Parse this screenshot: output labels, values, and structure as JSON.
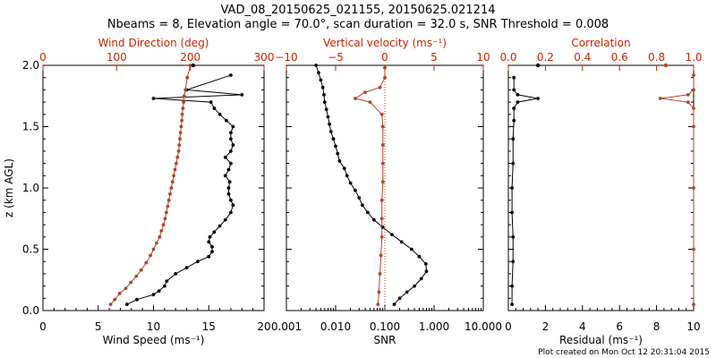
{
  "header": {
    "title": "VAD_08_20150625_021155, 20150625.021214",
    "subtitle": "Nbeams = 8, Elevation angle = 70.0°, scan duration = 32.0 s, SNR Threshold = 0.008"
  },
  "footer": {
    "created": "Plot created on Mon Oct 12 20:31:04 2015"
  },
  "colors": {
    "black": "#000000",
    "red": "#b2442a",
    "redText": "#cc2200"
  },
  "chart_data": [
    {
      "type": "line",
      "title": "",
      "ylabel": "z (km AGL)",
      "ylim": [
        0,
        2.0
      ],
      "yticks": [
        "0.0",
        "0.5",
        "1.0",
        "1.5",
        "2.0"
      ],
      "bottom_axis": {
        "label": "Wind Speed (ms⁻¹)",
        "lim": [
          0,
          20
        ],
        "ticks": [
          "0",
          "5",
          "10",
          "15",
          "20"
        ]
      },
      "top_axis": {
        "label": "Wind Direction (deg)",
        "lim": [
          0,
          360
        ],
        "ticks": [
          "0",
          "100",
          "200",
          "300"
        ]
      },
      "series": [
        {
          "axis": "bottom",
          "color": "black",
          "points": [
            [
              7.6,
              0.05
            ],
            [
              8.5,
              0.09
            ],
            [
              10.0,
              0.13
            ],
            [
              10.5,
              0.16
            ],
            [
              11.0,
              0.2
            ],
            [
              11.2,
              0.24
            ],
            [
              12.0,
              0.3
            ],
            [
              13.0,
              0.35
            ],
            [
              14.0,
              0.4
            ],
            [
              15.0,
              0.44
            ],
            [
              15.3,
              0.48
            ],
            [
              15.3,
              0.52
            ],
            [
              15.0,
              0.56
            ],
            [
              15.1,
              0.6
            ],
            [
              15.5,
              0.64
            ],
            [
              16.0,
              0.69
            ],
            [
              16.5,
              0.74
            ],
            [
              17.0,
              0.8
            ],
            [
              17.2,
              0.86
            ],
            [
              17.0,
              0.9
            ],
            [
              16.8,
              0.95
            ],
            [
              16.8,
              1.0
            ],
            [
              16.9,
              1.05
            ],
            [
              16.5,
              1.1
            ],
            [
              16.8,
              1.15
            ],
            [
              17.0,
              1.2
            ],
            [
              16.5,
              1.25
            ],
            [
              17.0,
              1.3
            ],
            [
              17.2,
              1.35
            ],
            [
              17.0,
              1.4
            ],
            [
              17.0,
              1.45
            ],
            [
              17.2,
              1.5
            ],
            [
              16.6,
              1.55
            ],
            [
              16.0,
              1.6
            ],
            [
              15.5,
              1.65
            ],
            [
              15.2,
              1.7
            ],
            [
              10.0,
              1.73
            ],
            [
              18.0,
              1.76
            ],
            [
              13.0,
              1.8
            ],
            [
              17.0,
              1.92
            ]
          ]
        },
        {
          "axis": "top",
          "color": "red",
          "points": [
            [
              110,
              0.05
            ],
            [
              117,
              0.09
            ],
            [
              125,
              0.14
            ],
            [
              135,
              0.18
            ],
            [
              143,
              0.23
            ],
            [
              152,
              0.28
            ],
            [
              160,
              0.33
            ],
            [
              168,
              0.39
            ],
            [
              175,
              0.45
            ],
            [
              180,
              0.5
            ],
            [
              185,
              0.55
            ],
            [
              190,
              0.6
            ],
            [
              193,
              0.65
            ],
            [
              196,
              0.7
            ],
            [
              199,
              0.75
            ],
            [
              201,
              0.8
            ],
            [
              203,
              0.85
            ],
            [
              205,
              0.9
            ],
            [
              207,
              0.95
            ],
            [
              209,
              1.0
            ],
            [
              211,
              1.05
            ],
            [
              213,
              1.1
            ],
            [
              215,
              1.15
            ],
            [
              217,
              1.2
            ],
            [
              219,
              1.25
            ],
            [
              221,
              1.3
            ],
            [
              222,
              1.35
            ],
            [
              223,
              1.4
            ],
            [
              224,
              1.45
            ],
            [
              225,
              1.5
            ],
            [
              226,
              1.55
            ],
            [
              227,
              1.6
            ],
            [
              228,
              1.65
            ],
            [
              229,
              1.7
            ],
            [
              230,
              1.75
            ],
            [
              232,
              1.8
            ],
            [
              235,
              1.9
            ],
            [
              240,
              2.0
            ]
          ]
        }
      ],
      "extra_markers": [
        {
          "axis": "bottom",
          "color": "black",
          "x": 13.6,
          "y": 2.0
        }
      ]
    },
    {
      "type": "line",
      "title": "",
      "ylim": [
        0,
        2.0
      ],
      "xscale": "log",
      "bottom_axis": {
        "label": "SNR",
        "lim": [
          0.001,
          10
        ],
        "ticks": [
          "0.001",
          "0.010",
          "0.100",
          "1.000",
          "10.000"
        ]
      },
      "top_axis": {
        "label": "Vertical velocity (ms⁻¹)",
        "lim": [
          -10,
          10
        ],
        "ticks": [
          "−10",
          "−5",
          "0",
          "5",
          "10"
        ]
      },
      "reference_line": {
        "axis": "top",
        "x": 0,
        "style": "dotted",
        "color": "red"
      },
      "series": [
        {
          "axis": "bottom",
          "color": "black",
          "points": [
            [
              0.155,
              0.05
            ],
            [
              0.2,
              0.1
            ],
            [
              0.28,
              0.15
            ],
            [
              0.4,
              0.2
            ],
            [
              0.55,
              0.26
            ],
            [
              0.7,
              0.32
            ],
            [
              0.68,
              0.38
            ],
            [
              0.5,
              0.44
            ],
            [
              0.35,
              0.5
            ],
            [
              0.22,
              0.56
            ],
            [
              0.14,
              0.62
            ],
            [
              0.09,
              0.68
            ],
            [
              0.06,
              0.74
            ],
            [
              0.045,
              0.8
            ],
            [
              0.035,
              0.86
            ],
            [
              0.03,
              0.92
            ],
            [
              0.025,
              0.98
            ],
            [
              0.02,
              1.04
            ],
            [
              0.017,
              1.1
            ],
            [
              0.015,
              1.16
            ],
            [
              0.012,
              1.22
            ],
            [
              0.011,
              1.28
            ],
            [
              0.01,
              1.34
            ],
            [
              0.009,
              1.4
            ],
            [
              0.008,
              1.46
            ],
            [
              0.0075,
              1.52
            ],
            [
              0.007,
              1.58
            ],
            [
              0.0065,
              1.64
            ],
            [
              0.006,
              1.7
            ],
            [
              0.0058,
              1.76
            ],
            [
              0.0055,
              1.82
            ],
            [
              0.005,
              1.88
            ],
            [
              0.0045,
              1.94
            ],
            [
              0.004,
              2.0
            ]
          ]
        },
        {
          "axis": "top",
          "color": "red",
          "points": [
            [
              -0.7,
              0.05
            ],
            [
              -0.6,
              0.15
            ],
            [
              -0.5,
              0.3
            ],
            [
              -0.4,
              0.45
            ],
            [
              -0.3,
              0.6
            ],
            [
              -0.3,
              0.75
            ],
            [
              -0.3,
              0.9
            ],
            [
              -0.2,
              1.05
            ],
            [
              -0.2,
              1.2
            ],
            [
              -0.2,
              1.35
            ],
            [
              -0.2,
              1.5
            ],
            [
              -0.3,
              1.6
            ],
            [
              -1.5,
              1.7
            ],
            [
              -3.0,
              1.73
            ],
            [
              -2.0,
              1.78
            ],
            [
              -0.5,
              1.82
            ],
            [
              0,
              1.9
            ],
            [
              0,
              1.98
            ]
          ]
        }
      ]
    },
    {
      "type": "line",
      "title": "",
      "ylim": [
        0,
        2.0
      ],
      "bottom_axis": {
        "label": "Residual (ms⁻¹)",
        "lim": [
          0,
          10
        ],
        "ticks": [
          "0",
          "2",
          "4",
          "6",
          "8",
          "10"
        ]
      },
      "top_axis": {
        "label": "Correlation",
        "lim": [
          0,
          1
        ],
        "ticks": [
          "0.0",
          "0.2",
          "0.4",
          "0.6",
          "0.8",
          "1.0"
        ]
      },
      "series": [
        {
          "axis": "bottom",
          "color": "black",
          "points": [
            [
              0.2,
              0.05
            ],
            [
              0.2,
              0.2
            ],
            [
              0.25,
              0.4
            ],
            [
              0.25,
              0.6
            ],
            [
              0.2,
              0.8
            ],
            [
              0.2,
              1.0
            ],
            [
              0.25,
              1.2
            ],
            [
              0.25,
              1.4
            ],
            [
              0.3,
              1.55
            ],
            [
              0.3,
              1.65
            ],
            [
              0.5,
              1.7
            ],
            [
              1.6,
              1.73
            ],
            [
              0.5,
              1.76
            ],
            [
              0.3,
              1.8
            ],
            [
              0.3,
              1.9
            ]
          ]
        },
        {
          "axis": "top",
          "color": "red",
          "points": [
            [
              1.0,
              0.05
            ],
            [
              1.0,
              0.5
            ],
            [
              1.0,
              1.0
            ],
            [
              1.0,
              1.5
            ],
            [
              1.0,
              1.65
            ],
            [
              0.97,
              1.7
            ],
            [
              0.82,
              1.73
            ],
            [
              0.97,
              1.76
            ],
            [
              1.0,
              1.8
            ],
            [
              1.0,
              1.92
            ]
          ]
        }
      ],
      "extra_markers": [
        {
          "axis": "bottom",
          "color": "black",
          "x": 1.6,
          "y": 2.0
        },
        {
          "axis": "top",
          "color": "red",
          "x": 0.85,
          "y": 2.0
        }
      ]
    }
  ]
}
